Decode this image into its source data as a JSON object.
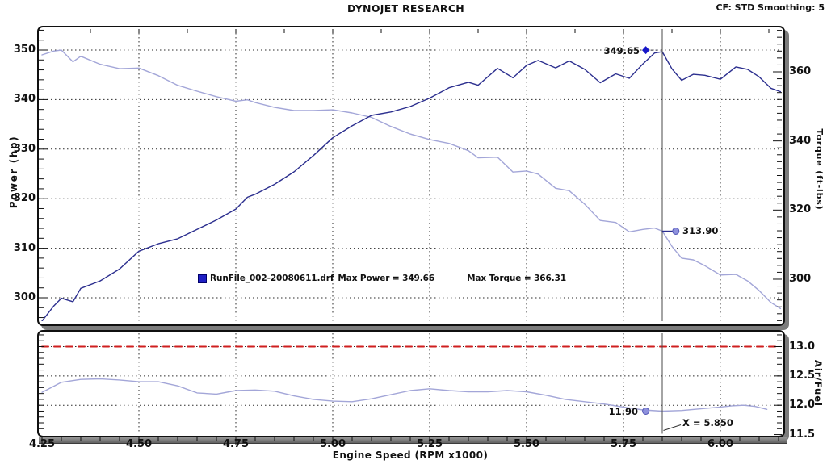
{
  "header": {
    "title": "DYNOJET RESEARCH",
    "settings": "CF: STD  Smoothing: 5"
  },
  "legend": {
    "file": "RunFile_002-20080611.drf",
    "max_power": "Max Power = 349.66",
    "max_torque": "Max Torque = 366.31",
    "swatch_color": "#1f1fc4"
  },
  "cursor": {
    "x_value": 5.85,
    "label": "X = 5.850"
  },
  "markers": [
    {
      "series": "power",
      "label": "349.65",
      "rpm": 5.8075,
      "value": 349.65,
      "shape": "diamond",
      "label_side": "left"
    },
    {
      "series": "torque",
      "label": "313.90",
      "rpm": 5.885,
      "value": 313.9,
      "shape": "dot",
      "label_side": "right"
    },
    {
      "series": "af",
      "label": "11.90",
      "rpm": 5.8075,
      "value": 11.9,
      "shape": "dot",
      "label_side": "left"
    }
  ],
  "colors": {
    "power": "#2c2f8f",
    "torque": "#a3a6d8",
    "af": "#a3a6d8",
    "af_target": "#cf1f1f",
    "grid": "#2b2b2b",
    "cursor": "#4a4a4a",
    "marker_diamond": "#1616c8",
    "marker_dot_fill": "#8e91dd",
    "marker_dot_stroke": "#5054b4"
  },
  "chart_data": [
    {
      "id": "dyno",
      "type": "line",
      "title": "DYNOJET RESEARCH",
      "x_axis": {
        "label": "Engine Speed (RPM x1000)",
        "tick_labels": [
          "4.25",
          "4.50",
          "4.75",
          "5.00",
          "5.25",
          "5.50",
          "5.75",
          "6.00"
        ],
        "tick_values": [
          4.25,
          4.5,
          4.75,
          5.0,
          5.25,
          5.5,
          5.75,
          6.0
        ],
        "range": [
          4.2417,
          6.1583
        ],
        "grid": true
      },
      "left_axis": {
        "label": "Power (hp)",
        "ticks": [
          300,
          310,
          320,
          330,
          340,
          350
        ],
        "range": [
          295.3,
          354.2
        ],
        "grid": true
      },
      "right_axis": {
        "label": "Torque (ft-lbs)",
        "ticks": [
          300,
          320,
          340,
          360
        ],
        "range": [
          287.9,
          372.4
        ],
        "grid": false
      },
      "rpm": [
        4.25,
        4.28,
        4.3,
        4.33,
        4.35,
        4.4,
        4.45,
        4.5,
        4.55,
        4.6,
        4.65,
        4.7,
        4.75,
        4.78,
        4.8,
        4.85,
        4.9,
        4.95,
        5.0,
        5.05,
        5.1,
        5.15,
        5.2,
        5.25,
        5.3,
        5.35,
        5.375,
        5.425,
        5.465,
        5.5,
        5.53,
        5.575,
        5.61,
        5.65,
        5.69,
        5.73,
        5.765,
        5.8,
        5.83,
        5.85,
        5.875,
        5.9,
        5.93,
        5.96,
        6.0,
        6.04,
        6.07,
        6.1,
        6.13,
        6.155
      ],
      "series": [
        {
          "name": "Power",
          "axis": "left",
          "max": 349.66,
          "values": [
            295.3,
            298.3,
            299.9,
            299.2,
            301.9,
            303.4,
            305.8,
            309.4,
            310.9,
            311.9,
            313.8,
            315.7,
            317.9,
            320.3,
            320.9,
            322.9,
            325.4,
            328.7,
            332.3,
            334.7,
            336.8,
            337.5,
            338.6,
            340.3,
            342.4,
            343.5,
            342.9,
            346.3,
            344.4,
            346.9,
            347.9,
            346.4,
            347.8,
            346.1,
            343.4,
            345.2,
            344.3,
            347.2,
            349.4,
            349.65,
            346.2,
            343.9,
            345.1,
            344.9,
            344.1,
            346.6,
            346.1,
            344.6,
            342.3,
            341.6
          ]
        },
        {
          "name": "Torque",
          "axis": "right",
          "max": 366.31,
          "values": [
            364.9,
            366.0,
            366.3,
            362.9,
            364.5,
            362.2,
            360.9,
            361.1,
            358.9,
            356.1,
            354.4,
            352.8,
            351.5,
            351.9,
            351.1,
            349.7,
            348.8,
            348.8,
            349.0,
            348.1,
            346.8,
            344.2,
            342.0,
            340.4,
            339.3,
            337.2,
            335.1,
            335.3,
            331.0,
            331.3,
            330.4,
            326.3,
            325.6,
            321.7,
            317.0,
            316.4,
            313.7,
            314.4,
            314.8,
            313.9,
            309.5,
            306.1,
            305.6,
            303.9,
            301.2,
            301.4,
            299.5,
            296.7,
            293.3,
            291.5
          ]
        }
      ]
    },
    {
      "id": "airfuel",
      "type": "line",
      "right_axis": {
        "label": "Air/Fuel",
        "tick_labels": [
          "13.0",
          "12.5",
          "12.0",
          "11.5"
        ],
        "tick_values": [
          13.0,
          12.5,
          12.0,
          11.5
        ],
        "range": [
          11.5,
          13.25
        ],
        "grid": true
      },
      "rpm": [
        4.25,
        4.3,
        4.35,
        4.4,
        4.45,
        4.5,
        4.55,
        4.6,
        4.65,
        4.7,
        4.75,
        4.8,
        4.85,
        4.9,
        4.95,
        5.0,
        5.05,
        5.1,
        5.15,
        5.2,
        5.25,
        5.3,
        5.35,
        5.4,
        5.45,
        5.5,
        5.55,
        5.6,
        5.65,
        5.7,
        5.75,
        5.8,
        5.85,
        5.9,
        5.95,
        6.0,
        6.03,
        6.06,
        6.09,
        6.12
      ],
      "series": [
        {
          "name": "Air/Fuel",
          "values": [
            12.22,
            12.39,
            12.44,
            12.45,
            12.43,
            12.4,
            12.4,
            12.33,
            12.21,
            12.19,
            12.25,
            12.26,
            12.24,
            12.16,
            12.1,
            12.07,
            12.06,
            12.11,
            12.18,
            12.25,
            12.28,
            12.25,
            12.23,
            12.23,
            12.25,
            12.23,
            12.17,
            12.1,
            12.06,
            12.02,
            11.97,
            11.92,
            11.9,
            11.91,
            11.94,
            11.97,
            11.99,
            12.0,
            11.98,
            11.93
          ]
        },
        {
          "name": "AF Target",
          "style": "dashed-red",
          "rpm": [
            4.25,
            6.155
          ],
          "values": [
            13.0,
            13.0
          ]
        }
      ]
    }
  ]
}
